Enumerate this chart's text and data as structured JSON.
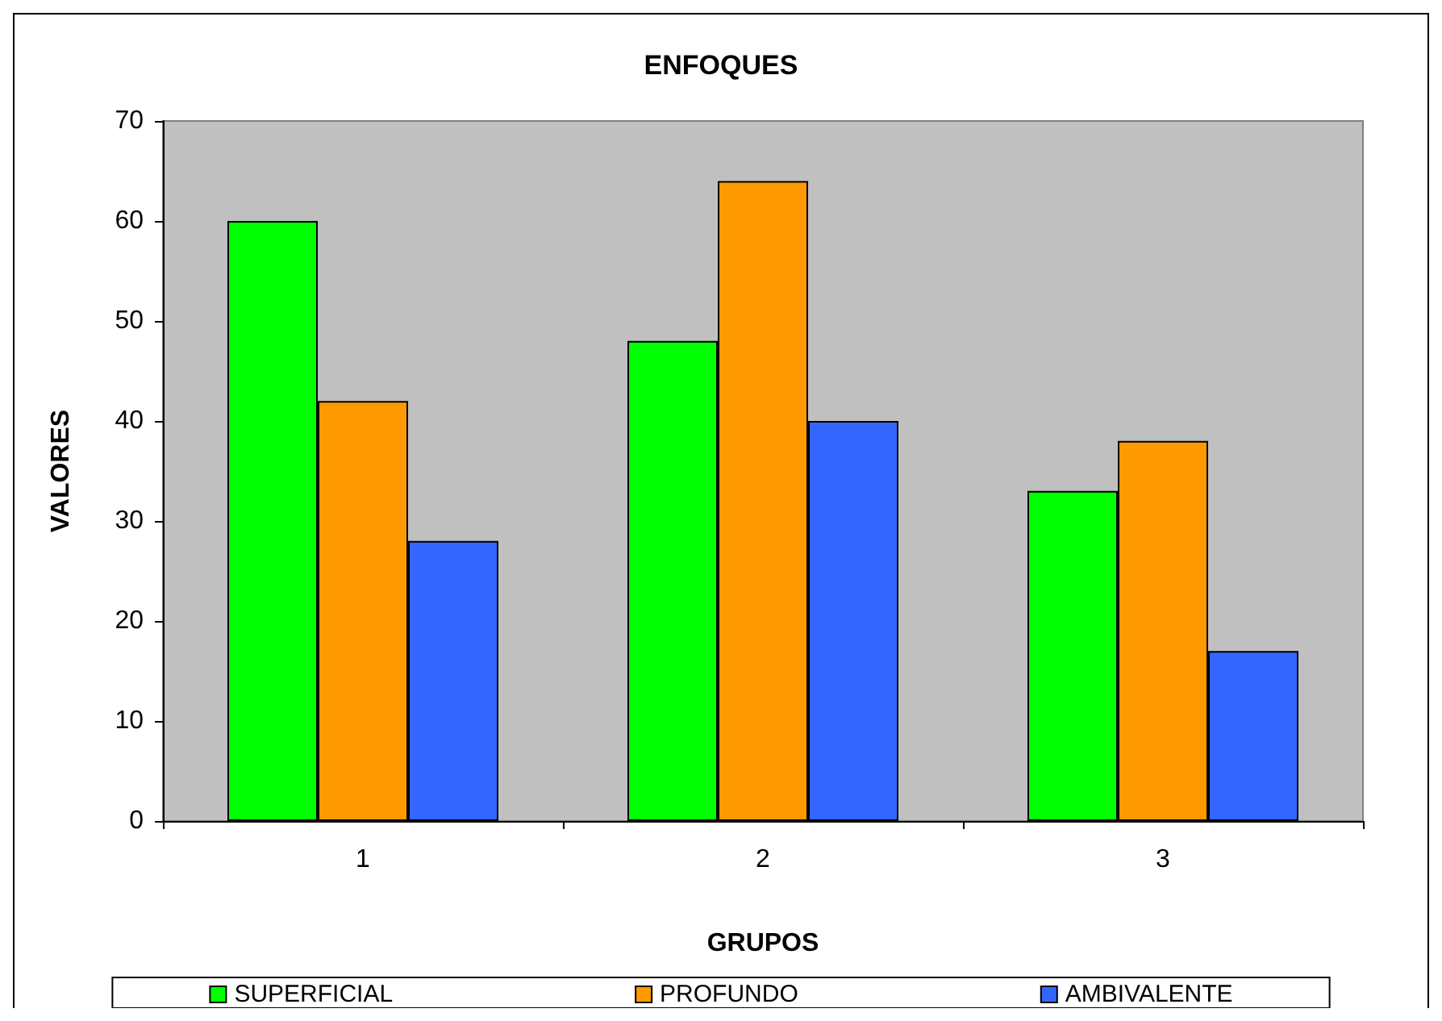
{
  "chart_data": {
    "type": "bar",
    "title": "ENFOQUES",
    "xlabel": "GRUPOS",
    "ylabel": "VALORES",
    "categories": [
      "1",
      "2",
      "3"
    ],
    "series": [
      {
        "name": "SUPERFICIAL",
        "color": "#00ff00",
        "values": [
          60,
          48,
          33
        ]
      },
      {
        "name": "PROFUNDO",
        "color": "#ff9900",
        "values": [
          42,
          64,
          38
        ]
      },
      {
        "name": "AMBIVALENTE",
        "color": "#3366ff",
        "values": [
          28,
          40,
          17
        ]
      }
    ],
    "ylim": [
      0,
      70
    ],
    "yticks": [
      0,
      10,
      20,
      30,
      40,
      50,
      60,
      70
    ],
    "grid": false,
    "legend": "bottom"
  }
}
